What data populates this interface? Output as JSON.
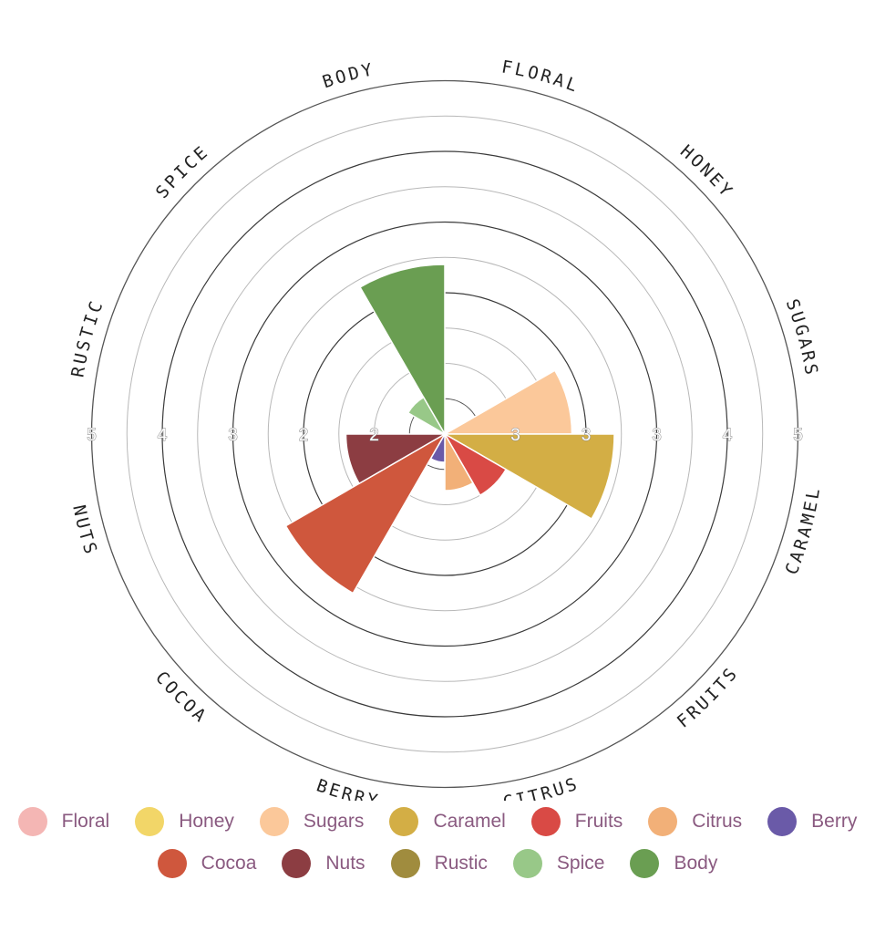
{
  "chart_data": {
    "type": "polar-area",
    "categories": [
      "Body",
      "Floral",
      "Honey",
      "Sugars",
      "Caramel",
      "Fruits",
      "Citrus",
      "Berry",
      "Cocoa",
      "Nuts",
      "Rustic",
      "Spice"
    ],
    "values": [
      2.4,
      0,
      0,
      1.8,
      2.4,
      1.0,
      0.8,
      0.4,
      2.6,
      1.4,
      0,
      0.6
    ],
    "colors": [
      "#6a9e52",
      "#f4b6b4",
      "#f2d668",
      "#fbc89a",
      "#d3ae45",
      "#d94a45",
      "#f2b078",
      "#6a5aa8",
      "#cf573d",
      "#8c3d42",
      "#a08c3e",
      "#98c888"
    ],
    "ring_labels": [
      "BODY",
      "FLORAL",
      "HONEY",
      "SUGARS",
      "CARAMEL",
      "FRUITS",
      "CITRUS",
      "BERRY",
      "COCOA",
      "NUTS",
      "RUSTIC",
      "SPICE"
    ],
    "tick_labels_left": [
      "5",
      "4",
      "3",
      "2",
      "2"
    ],
    "tick_labels_right": [
      "3",
      "3",
      "3",
      "4",
      "5"
    ],
    "grid": true
  },
  "legend": {
    "row1": [
      {
        "label": "Floral",
        "color": "#f4b6b4"
      },
      {
        "label": "Honey",
        "color": "#f2d668"
      },
      {
        "label": "Sugars",
        "color": "#fbc89a"
      },
      {
        "label": "Caramel",
        "color": "#d3ae45"
      },
      {
        "label": "Fruits",
        "color": "#d94a45"
      },
      {
        "label": "Citrus",
        "color": "#f2b078"
      },
      {
        "label": "Berry",
        "color": "#6a5aa8"
      }
    ],
    "row2": [
      {
        "label": "Cocoa",
        "color": "#cf573d"
      },
      {
        "label": "Nuts",
        "color": "#8c3d42"
      },
      {
        "label": "Rustic",
        "color": "#a08c3e"
      },
      {
        "label": "Spice",
        "color": "#98c888"
      },
      {
        "label": "Body",
        "color": "#6a9e52"
      }
    ]
  }
}
